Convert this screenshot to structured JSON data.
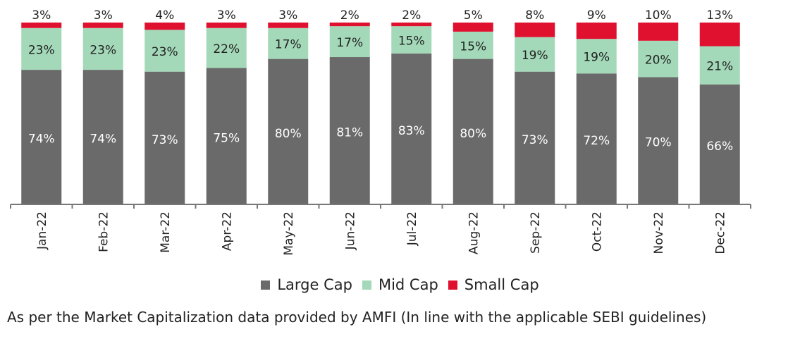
{
  "chart_data": {
    "type": "bar",
    "stacked": true,
    "categories": [
      "Jan-22",
      "Feb-22",
      "Mar-22",
      "Apr-22",
      "May-22",
      "Jun-22",
      "Jul-22",
      "Aug-22",
      "Sep-22",
      "Oct-22",
      "Nov-22",
      "Dec-22"
    ],
    "series": [
      {
        "name": "Large Cap",
        "color": "#6b6a6a",
        "label_color": "#ffffff",
        "values": [
          74,
          74,
          73,
          75,
          80,
          81,
          83,
          80,
          73,
          72,
          70,
          66
        ]
      },
      {
        "name": "Mid Cap",
        "color": "#a3d9b9",
        "label_color": "#222222",
        "values": [
          23,
          23,
          23,
          22,
          17,
          17,
          15,
          15,
          19,
          19,
          20,
          21
        ]
      },
      {
        "name": "Small Cap",
        "color": "#e0102f",
        "label_color": "#222222",
        "values": [
          3,
          3,
          4,
          3,
          3,
          2,
          2,
          5,
          8,
          9,
          10,
          13
        ]
      }
    ],
    "value_suffix": "%",
    "ylim": [
      0,
      100
    ],
    "grid": false,
    "legend_position": "bottom"
  },
  "footnote": "As per the Market Capitalization data provided by AMFI (In line with the applicable SEBI guidelines)"
}
